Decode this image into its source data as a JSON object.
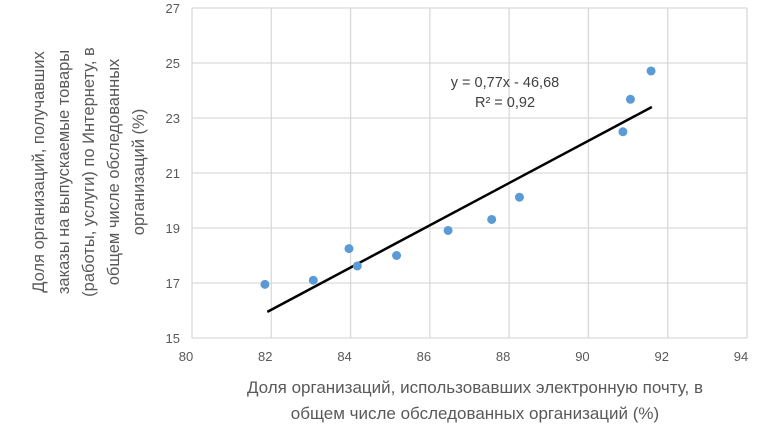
{
  "chart_data": {
    "type": "scatter",
    "xlabel_lines": [
      "Доля организаций, использовавших электронную почту, в",
      "общем числе обследованных организаций (%)"
    ],
    "ylabel_lines": [
      "Доля организаций, получавших",
      "заказы на выпускаемые товары",
      "(работы, услуги) по Интернету, в",
      "общем числе обследованных",
      "организаций (%)"
    ],
    "xlim": [
      80,
      94
    ],
    "ylim": [
      15,
      27
    ],
    "xticks": [
      80,
      82,
      84,
      86,
      88,
      90,
      92,
      94
    ],
    "yticks": [
      15,
      17,
      19,
      21,
      23,
      25,
      27
    ],
    "grid": true,
    "points": [
      {
        "x": 81.84,
        "y": 16.95
      },
      {
        "x": 83.06,
        "y": 17.1
      },
      {
        "x": 83.96,
        "y": 18.25
      },
      {
        "x": 84.17,
        "y": 17.62
      },
      {
        "x": 85.16,
        "y": 18.0
      },
      {
        "x": 86.46,
        "y": 18.91
      },
      {
        "x": 87.56,
        "y": 19.31
      },
      {
        "x": 88.26,
        "y": 20.12
      },
      {
        "x": 90.87,
        "y": 22.5
      },
      {
        "x": 91.06,
        "y": 23.68
      },
      {
        "x": 91.58,
        "y": 24.71
      }
    ],
    "trendline": {
      "type": "linear",
      "from": [
        81.9,
        15.95
      ],
      "to": [
        91.6,
        23.4
      ],
      "equation": "y = 0,77x - 46,68",
      "r2": "R² = 0,92"
    },
    "colors": {
      "point": "#5b9bd5",
      "trend": "#000000",
      "grid": "#d9d9d9",
      "text": "#595959"
    }
  }
}
